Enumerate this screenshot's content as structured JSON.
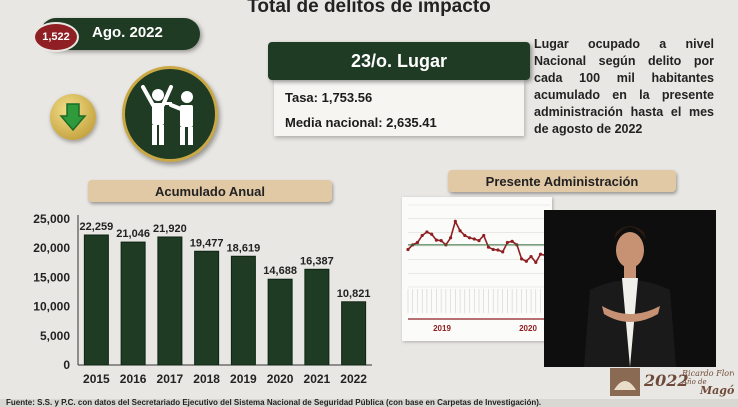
{
  "header": {
    "title": "Total de delitos de impacto",
    "count_badge": "1,522",
    "date_label": "Ago. 2022"
  },
  "ranking": {
    "place": "23/o. Lugar",
    "rate": "Tasa: 1,753.56",
    "national_mean": "Media nacional: 2,635.41"
  },
  "explanation": "Lugar ocupado a nivel Nacional según delito por cada 100 mil habitantes acumulado en la presente administración hasta el mes de agosto de 2022",
  "icons": {
    "trend": "down-arrow-icon",
    "crime": "robbery-icon"
  },
  "colors": {
    "bar": "#1f3b24",
    "accent": "#8f1f22",
    "gold": "#c9a845",
    "header_tan": "#e2c9a6"
  },
  "chart_data": [
    {
      "type": "bar",
      "title": "Acumulado Anual",
      "categories": [
        "2015",
        "2016",
        "2017",
        "2018",
        "2019",
        "2020",
        "2021",
        "2022"
      ],
      "values": [
        22259,
        21046,
        21920,
        19477,
        18619,
        14688,
        16387,
        10821
      ],
      "value_labels": [
        "22,259",
        "21,046",
        "21,920",
        "19,477",
        "18,619",
        "14,688",
        "16,387",
        "10,821"
      ],
      "yticks": [
        "0",
        "5,000",
        "10,000",
        "15,000",
        "20,000",
        "25,000"
      ],
      "ylim": [
        0,
        25000
      ],
      "grid": false,
      "legend": "none"
    },
    {
      "type": "line",
      "title": "Presente Administración",
      "year_labels": [
        "2019",
        "2020"
      ],
      "values": [
        1060,
        1080,
        1090,
        1120,
        1135,
        1125,
        1100,
        1098,
        1080,
        1110,
        1180,
        1140,
        1120,
        1110,
        1105,
        1098,
        1120,
        1070,
        1060,
        1058,
        1050,
        1090,
        1095,
        1080,
        1020,
        1010,
        1030,
        1005,
        1040,
        1035,
        1060
      ],
      "ylim": [
        900,
        1250
      ],
      "grid": true
    }
  ],
  "footer": {
    "source": "Fuente: S.S. y P.C. con datos del Secretariado Ejecutivo del Sistema Nacional de Seguridad Pública (con base en Carpetas de Investigación)."
  },
  "logo": {
    "year": "2022",
    "line1": "Ricardo Flores",
    "line2": "Año de",
    "line3": "Magón"
  }
}
